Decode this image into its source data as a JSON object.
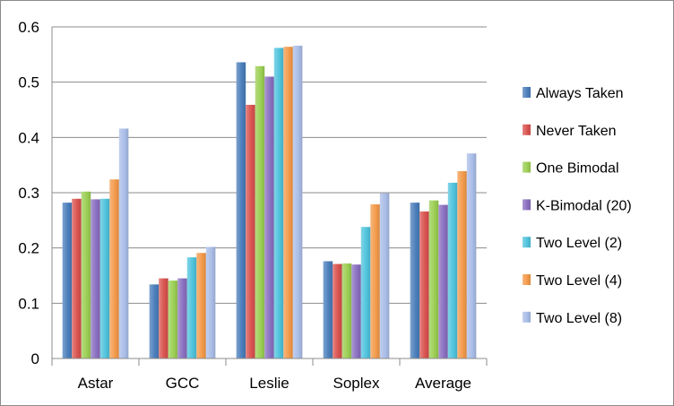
{
  "chart_data": {
    "type": "bar",
    "title": "",
    "xlabel": "",
    "ylabel": "",
    "categories": [
      "Astar",
      "GCC",
      "Leslie",
      "Soplex",
      "Average"
    ],
    "ylim": [
      0,
      0.6
    ],
    "yticks": [
      "0",
      "0.1",
      "0.2",
      "0.3",
      "0.4",
      "0.5",
      "0.6"
    ],
    "grid": "horizontal",
    "legend_position": "right",
    "series": [
      {
        "name": "Always Taken",
        "color": "#4a7ebb",
        "values": [
          0.282,
          0.134,
          0.536,
          0.176,
          0.282
        ]
      },
      {
        "name": "Never Taken",
        "color": "#d9534f",
        "values": [
          0.289,
          0.145,
          0.459,
          0.171,
          0.266
        ]
      },
      {
        "name": "One Bimodal",
        "color": "#9bcf53",
        "values": [
          0.302,
          0.141,
          0.529,
          0.172,
          0.286
        ]
      },
      {
        "name": "K-Bimodal (20)",
        "color": "#8a6fc0",
        "values": [
          0.288,
          0.145,
          0.51,
          0.17,
          0.278
        ]
      },
      {
        "name": "Two Level (2)",
        "color": "#4fc3dc",
        "values": [
          0.289,
          0.183,
          0.562,
          0.238,
          0.318
        ]
      },
      {
        "name": "Two Level (4)",
        "color": "#f39a4a",
        "values": [
          0.324,
          0.191,
          0.564,
          0.279,
          0.339
        ]
      },
      {
        "name": "Two Level (8)",
        "color": "#a9bde8",
        "values": [
          0.416,
          0.202,
          0.566,
          0.299,
          0.371
        ]
      }
    ]
  }
}
